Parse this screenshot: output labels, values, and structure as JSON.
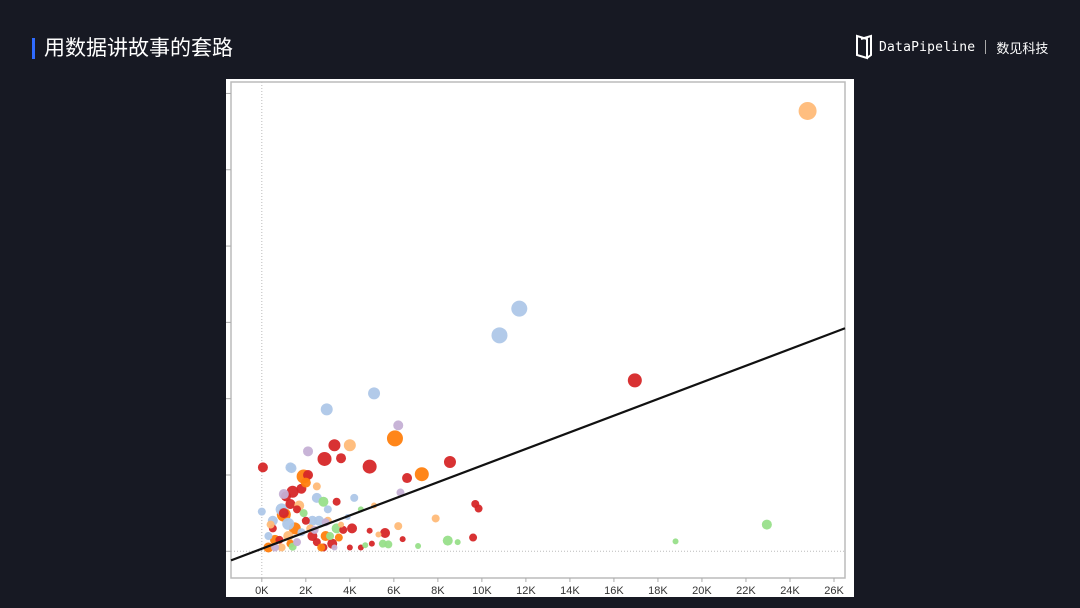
{
  "header": {
    "title": "用数据讲故事的套路",
    "accent_color": "#2f6bff"
  },
  "logo": {
    "brand": "DataPipeline",
    "brand_cn": "数见科技"
  },
  "chart_data": {
    "type": "scatter",
    "title": "",
    "xlabel": "",
    "ylabel": "",
    "xlim": [
      -1.4,
      26.5
    ],
    "ylim": [
      -0.35,
      6.15
    ],
    "x_ticks": [
      0,
      2,
      4,
      6,
      8,
      10,
      12,
      14,
      16,
      18,
      20,
      22,
      24,
      26
    ],
    "x_tick_labels": [
      "0K",
      "2K",
      "4K",
      "6K",
      "8K",
      "10K",
      "12K",
      "14K",
      "16K",
      "18K",
      "20K",
      "22K",
      "24K",
      "26K"
    ],
    "y_ticks": [
      0,
      1,
      2,
      3,
      4,
      5,
      6
    ],
    "y_tick_labels_shown": false,
    "reference_lines": {
      "x": 0,
      "y": 0,
      "style": "dotted"
    },
    "trend_line": {
      "intercept": 0.034,
      "slope": 0.109,
      "color": "#111111"
    },
    "colors": {
      "red": "#d62728",
      "orange": "#ff7f0e",
      "lightorange": "#ffbb78",
      "lightblue": "#aec7e8",
      "green": "#98df8a",
      "purple": "#c5b0d5"
    },
    "point_fields": [
      "x_thousands",
      "y",
      "size",
      "color"
    ],
    "points": [
      [
        24.8,
        5.77,
        9,
        "lightorange"
      ],
      [
        11.7,
        3.18,
        8,
        "lightblue"
      ],
      [
        10.8,
        2.83,
        8,
        "lightblue"
      ],
      [
        16.95,
        2.24,
        7,
        "red"
      ],
      [
        5.1,
        2.07,
        6,
        "lightblue"
      ],
      [
        2.95,
        1.86,
        6,
        "lightblue"
      ],
      [
        6.2,
        1.65,
        5,
        "purple"
      ],
      [
        6.05,
        1.48,
        8,
        "orange"
      ],
      [
        3.3,
        1.39,
        6,
        "red"
      ],
      [
        4.0,
        1.39,
        6,
        "lightorange"
      ],
      [
        2.1,
        1.31,
        5,
        "purple"
      ],
      [
        2.85,
        1.21,
        7,
        "red"
      ],
      [
        3.6,
        1.22,
        5,
        "red"
      ],
      [
        0.05,
        1.1,
        5,
        "red"
      ],
      [
        4.9,
        1.11,
        7,
        "red"
      ],
      [
        8.55,
        1.17,
        6,
        "red"
      ],
      [
        7.27,
        1.01,
        7,
        "orange"
      ],
      [
        6.6,
        0.96,
        5,
        "red"
      ],
      [
        1.35,
        1.09,
        5,
        "lightblue"
      ],
      [
        1.9,
        0.98,
        7,
        "orange"
      ],
      [
        6.3,
        0.77,
        4,
        "purple"
      ],
      [
        9.7,
        0.62,
        4,
        "red"
      ],
      [
        9.85,
        0.56,
        4,
        "red"
      ],
      [
        7.9,
        0.43,
        4,
        "lightorange"
      ],
      [
        22.95,
        0.35,
        5,
        "green"
      ],
      [
        18.8,
        0.13,
        3,
        "green"
      ],
      [
        9.6,
        0.18,
        4,
        "red"
      ],
      [
        8.45,
        0.14,
        5,
        "green"
      ],
      [
        8.9,
        0.12,
        3,
        "green"
      ],
      [
        7.1,
        0.07,
        3,
        "green"
      ],
      [
        5.6,
        0.24,
        5,
        "red"
      ],
      [
        5.75,
        0.09,
        4,
        "green"
      ],
      [
        6.2,
        0.33,
        4,
        "lightorange"
      ],
      [
        5.3,
        0.22,
        3,
        "lightorange"
      ],
      [
        6.4,
        0.16,
        3,
        "red"
      ],
      [
        1.4,
        0.78,
        6,
        "red"
      ],
      [
        1.1,
        0.72,
        5,
        "red"
      ],
      [
        1.8,
        0.82,
        5,
        "red"
      ],
      [
        1.3,
        0.62,
        5,
        "red"
      ],
      [
        1.6,
        0.55,
        4,
        "red"
      ],
      [
        0.5,
        0.3,
        4,
        "red"
      ],
      [
        2.3,
        0.2,
        5,
        "red"
      ],
      [
        2.8,
        0.05,
        4,
        "red"
      ],
      [
        3.2,
        0.1,
        5,
        "red"
      ],
      [
        4.0,
        0.05,
        3,
        "red"
      ],
      [
        4.5,
        0.05,
        3,
        "red"
      ],
      [
        3.7,
        0.28,
        4,
        "red"
      ],
      [
        2.0,
        0.4,
        4,
        "red"
      ],
      [
        0.8,
        0.15,
        4,
        "red"
      ],
      [
        3.4,
        0.65,
        4,
        "red"
      ],
      [
        4.1,
        0.3,
        5,
        "red"
      ],
      [
        5.0,
        0.1,
        3,
        "red"
      ],
      [
        1.0,
        0.5,
        5,
        "red"
      ],
      [
        2.5,
        0.12,
        4,
        "red"
      ],
      [
        4.9,
        0.27,
        3,
        "red"
      ],
      [
        2.1,
        1.0,
        5,
        "red"
      ],
      [
        1.0,
        0.48,
        7,
        "orange"
      ],
      [
        1.5,
        0.3,
        6,
        "orange"
      ],
      [
        0.6,
        0.15,
        5,
        "orange"
      ],
      [
        2.0,
        0.9,
        5,
        "orange"
      ],
      [
        0.3,
        0.05,
        5,
        "orange"
      ],
      [
        2.9,
        0.2,
        5,
        "orange"
      ],
      [
        3.5,
        0.18,
        4,
        "orange"
      ],
      [
        1.3,
        0.1,
        4,
        "orange"
      ],
      [
        2.7,
        0.05,
        4,
        "orange"
      ],
      [
        0.4,
        0.35,
        4,
        "lightorange"
      ],
      [
        1.2,
        0.2,
        5,
        "lightorange"
      ],
      [
        2.5,
        0.85,
        4,
        "lightorange"
      ],
      [
        1.7,
        0.6,
        5,
        "lightorange"
      ],
      [
        3.0,
        0.4,
        4,
        "lightorange"
      ],
      [
        0.9,
        0.05,
        4,
        "lightorange"
      ],
      [
        2.2,
        0.3,
        4,
        "lightorange"
      ],
      [
        5.1,
        0.6,
        3,
        "lightorange"
      ],
      [
        3.6,
        0.35,
        3,
        "lightorange"
      ],
      [
        0,
        0.52,
        4,
        "lightblue"
      ],
      [
        0.9,
        0.55,
        6,
        "lightblue"
      ],
      [
        2.5,
        0.7,
        5,
        "lightblue"
      ],
      [
        2.3,
        0.4,
        5,
        "lightblue"
      ],
      [
        1.2,
        0.36,
        6,
        "lightblue"
      ],
      [
        0.5,
        0.4,
        5,
        "lightblue"
      ],
      [
        1.8,
        0.25,
        4,
        "lightblue"
      ],
      [
        3.0,
        0.55,
        4,
        "lightblue"
      ],
      [
        4.2,
        0.7,
        4,
        "lightblue"
      ],
      [
        2.6,
        0.4,
        5,
        "lightblue"
      ],
      [
        0.3,
        0.2,
        4,
        "lightblue"
      ],
      [
        3.9,
        0.45,
        3,
        "lightblue"
      ],
      [
        1.3,
        1.1,
        5,
        "lightblue"
      ],
      [
        3.4,
        0.3,
        5,
        "green"
      ],
      [
        2.8,
        0.65,
        5,
        "green"
      ],
      [
        1.9,
        0.5,
        4,
        "green"
      ],
      [
        3.1,
        0.2,
        4,
        "green"
      ],
      [
        4.5,
        0.55,
        3,
        "green"
      ],
      [
        1.4,
        0.06,
        4,
        "green"
      ],
      [
        5.5,
        0.1,
        4,
        "green"
      ],
      [
        4.7,
        0.08,
        3,
        "green"
      ],
      [
        1.0,
        0.75,
        5,
        "purple"
      ],
      [
        2.4,
        0.28,
        4,
        "purple"
      ],
      [
        3.3,
        0.05,
        3,
        "purple"
      ],
      [
        0.6,
        0.05,
        4,
        "purple"
      ],
      [
        1.6,
        0.12,
        4,
        "purple"
      ],
      [
        2.9,
        0.38,
        4,
        "purple"
      ]
    ]
  }
}
